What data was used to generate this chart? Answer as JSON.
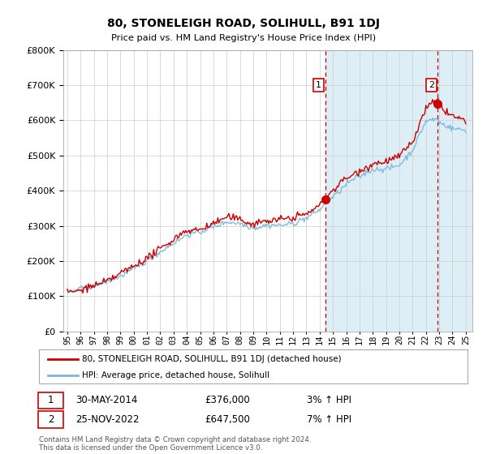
{
  "title": "80, STONELEIGH ROAD, SOLIHULL, B91 1DJ",
  "subtitle": "Price paid vs. HM Land Registry's House Price Index (HPI)",
  "ylim": [
    0,
    800000
  ],
  "xlim_start": 1994.7,
  "xlim_end": 2025.5,
  "legend_line1": "80, STONELEIGH ROAD, SOLIHULL, B91 1DJ (detached house)",
  "legend_line2": "HPI: Average price, detached house, Solihull",
  "sale1_label": "1",
  "sale1_date": "30-MAY-2014",
  "sale1_price": "£376,000",
  "sale1_hpi": "3% ↑ HPI",
  "sale1_x": 2014.41,
  "sale1_y": 376000,
  "sale2_label": "2",
  "sale2_date": "25-NOV-2022",
  "sale2_price": "£647,500",
  "sale2_hpi": "7% ↑ HPI",
  "sale2_x": 2022.9,
  "sale2_y": 647500,
  "vline1_x": 2014.41,
  "vline2_x": 2022.9,
  "footer": "Contains HM Land Registry data © Crown copyright and database right 2024.\nThis data is licensed under the Open Government Licence v3.0.",
  "hpi_color": "#7ab8d9",
  "price_color": "#cc0000",
  "vline_color": "#cc0000",
  "shade_color": "#ddeef7",
  "background_color": "#ffffff",
  "grid_color": "#cccccc",
  "sale_box_color": "#cc0000",
  "hpi_knots": [
    1995,
    1996,
    1997,
    1998,
    1999,
    2000,
    2001,
    2002,
    2003,
    2004,
    2005,
    2006,
    2007,
    2008,
    2009,
    2010,
    2011,
    2012,
    2013,
    2014,
    2015,
    2016,
    2017,
    2018,
    2019,
    2020,
    2021,
    2022,
    2022.9,
    2023,
    2024,
    2025
  ],
  "hpi_vals": [
    115000,
    125000,
    138000,
    152000,
    168000,
    188000,
    210000,
    235000,
    260000,
    285000,
    290000,
    305000,
    320000,
    315000,
    300000,
    305000,
    305000,
    310000,
    320000,
    345000,
    380000,
    415000,
    440000,
    460000,
    460000,
    470000,
    510000,
    590000,
    595000,
    585000,
    570000,
    565000
  ],
  "prop_knots": [
    1995,
    1996,
    1997,
    1998,
    1999,
    2000,
    2001,
    2002,
    2003,
    2004,
    2005,
    2006,
    2007,
    2008,
    2009,
    2010,
    2011,
    2012,
    2013,
    2014,
    2014.41,
    2015,
    2016,
    2017,
    2018,
    2019,
    2020,
    2021,
    2022,
    2022.9,
    2023,
    2024,
    2025
  ],
  "prop_vals": [
    120000,
    128000,
    142000,
    157000,
    175000,
    196000,
    218000,
    245000,
    272000,
    295000,
    298000,
    315000,
    332000,
    325000,
    305000,
    312000,
    312000,
    318000,
    330000,
    355000,
    376000,
    395000,
    430000,
    455000,
    475000,
    478000,
    490000,
    530000,
    625000,
    647500,
    630000,
    605000,
    590000
  ],
  "noise_seed": 42,
  "hpi_noise": 4000,
  "prop_noise": 5000
}
